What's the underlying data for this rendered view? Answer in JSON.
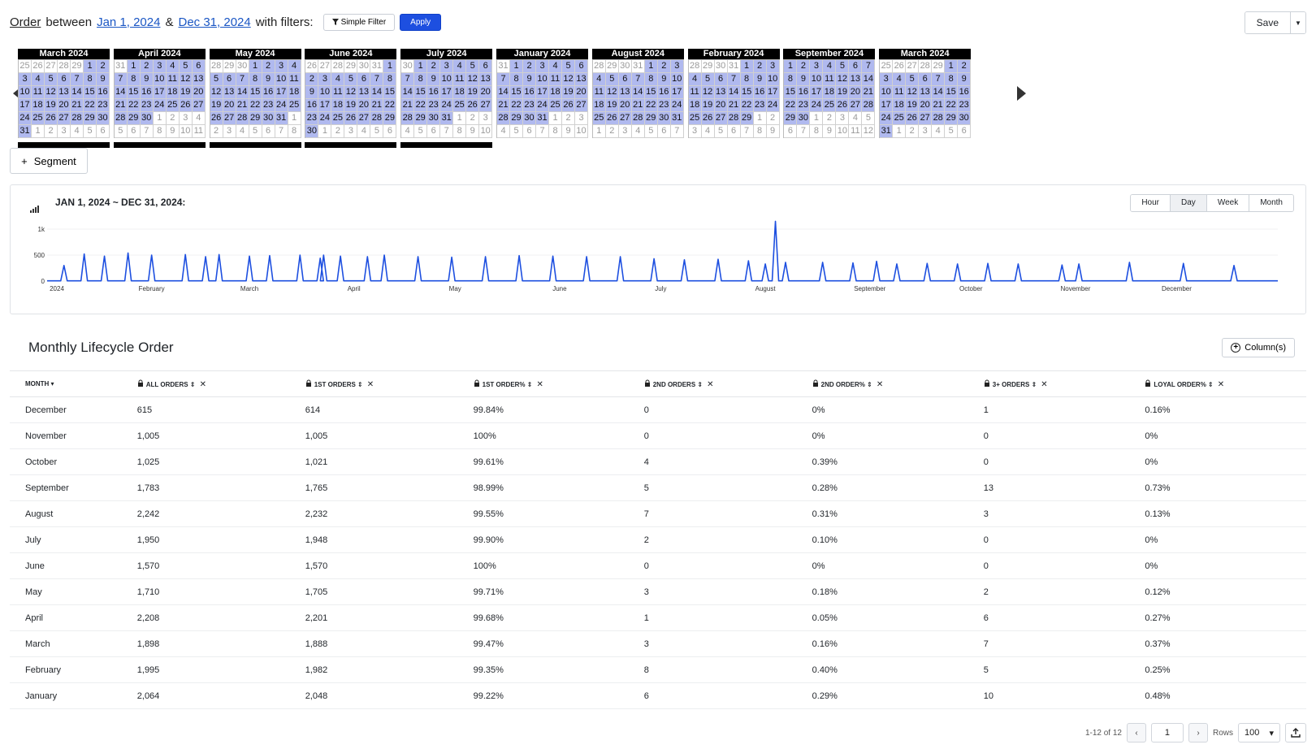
{
  "filter_bar": {
    "entity": "Order",
    "between": "between",
    "start_date": "Jan 1, 2024",
    "amp": "&",
    "end_date": "Dec 31, 2024",
    "with_filters": "with filters:",
    "simple_filter_label": "Simple Filter",
    "apply_label": "Apply",
    "save_label": "Save"
  },
  "calendars": [
    {
      "title": "March 2024",
      "lead": [
        25,
        26,
        27,
        28,
        29
      ],
      "days": 31,
      "trail": [
        1,
        2,
        3,
        4,
        5,
        6
      ],
      "selected": "partial-start"
    },
    {
      "title": "April 2024",
      "lead": [
        31
      ],
      "days": 30,
      "trail": [
        1,
        2,
        3,
        4,
        5,
        6,
        7,
        8,
        9,
        10,
        11
      ],
      "selected": "all"
    },
    {
      "title": "May 2024",
      "lead": [
        28,
        29,
        30
      ],
      "days": 31,
      "trail": [
        1,
        2,
        3,
        4,
        5,
        6,
        7,
        8
      ],
      "selected": "all"
    },
    {
      "title": "June 2024",
      "lead": [
        26,
        27,
        28,
        29,
        30,
        31
      ],
      "days": 30,
      "trail": [
        1,
        2,
        3,
        4,
        5,
        6
      ],
      "selected": "all"
    },
    {
      "title": "July 2024",
      "lead": [
        30
      ],
      "days": 31,
      "trail": [
        1,
        2,
        3,
        4,
        5,
        6,
        7,
        8,
        9,
        10
      ],
      "selected": "all"
    },
    {
      "title": "January 2024",
      "lead": [
        31
      ],
      "days": 31,
      "trail": [
        1,
        2,
        3,
        4,
        5,
        6,
        7,
        8,
        9,
        10
      ],
      "selected": "all"
    },
    {
      "title": "August 2024",
      "lead": [
        28,
        29,
        30,
        31
      ],
      "days": 31,
      "trail": [
        1,
        2,
        3,
        4,
        5,
        6,
        7
      ],
      "selected": "all"
    },
    {
      "title": "February 2024",
      "lead": [
        28,
        29,
        30,
        31
      ],
      "days": 29,
      "trail": [
        1,
        2,
        3,
        4,
        5,
        6,
        7,
        8,
        9
      ],
      "selected": "all"
    },
    {
      "title": "September 2024",
      "lead": [],
      "days": 30,
      "trail": [
        1,
        2,
        3,
        4,
        5,
        6,
        7,
        8,
        9,
        10,
        11,
        12
      ],
      "selected": "all"
    },
    {
      "title": "March 2024",
      "lead": [
        25,
        26,
        27,
        28,
        29
      ],
      "days": 31,
      "trail": [
        1,
        2,
        3,
        4,
        5,
        6
      ],
      "selected": "all"
    }
  ],
  "segment_label": "Segment",
  "chart_panel": {
    "title": "JAN 1, 2024 ~ DEC 31, 2024:",
    "granularity": [
      "Hour",
      "Day",
      "Week",
      "Month"
    ],
    "active_granularity": "Day"
  },
  "chart_data": {
    "type": "line",
    "title": "JAN 1, 2024 ~ DEC 31, 2024:",
    "xlabel": "",
    "ylabel": "",
    "y_ticks": [
      "0",
      "500",
      "1k"
    ],
    "ylim": [
      0,
      1000
    ],
    "x_tick_labels": [
      "2024",
      "February",
      "March",
      "April",
      "May",
      "June",
      "July",
      "August",
      "September",
      "October",
      "November",
      "December"
    ],
    "x_tick_days": [
      0,
      31,
      60,
      91,
      121,
      152,
      182,
      213,
      244,
      274,
      305,
      335
    ],
    "xlim": [
      0,
      365
    ],
    "baseline": 5,
    "series": [
      {
        "spikes": [
          [
            5,
            300
          ],
          [
            11,
            520
          ],
          [
            17,
            480
          ],
          [
            24,
            540
          ],
          [
            31,
            500
          ],
          [
            41,
            510
          ],
          [
            47,
            470
          ],
          [
            51,
            510
          ],
          [
            60,
            480
          ],
          [
            66,
            490
          ],
          [
            75,
            500
          ],
          [
            81,
            440
          ],
          [
            82,
            500
          ],
          [
            87,
            480
          ],
          [
            95,
            470
          ],
          [
            100,
            500
          ],
          [
            110,
            470
          ],
          [
            120,
            460
          ],
          [
            130,
            470
          ],
          [
            140,
            490
          ],
          [
            150,
            480
          ],
          [
            160,
            470
          ],
          [
            170,
            470
          ],
          [
            180,
            430
          ],
          [
            189,
            410
          ],
          [
            199,
            420
          ],
          [
            208,
            390
          ],
          [
            213,
            330
          ],
          [
            216,
            1150
          ],
          [
            219,
            360
          ],
          [
            230,
            360
          ],
          [
            239,
            350
          ],
          [
            246,
            380
          ],
          [
            252,
            330
          ],
          [
            261,
            340
          ],
          [
            270,
            330
          ],
          [
            279,
            340
          ],
          [
            288,
            330
          ],
          [
            301,
            310
          ],
          [
            306,
            330
          ],
          [
            321,
            360
          ],
          [
            337,
            340
          ],
          [
            352,
            300
          ]
        ]
      }
    ]
  },
  "table": {
    "title": "Monthly Lifecycle Order",
    "columns_label": "Column(s)",
    "headers": [
      "MONTH",
      "ALL ORDERS",
      "1ST ORDERS",
      "1ST ORDER%",
      "2ND ORDERS",
      "2ND ORDER%",
      "3+ ORDERS",
      "LOYAL ORDER%"
    ],
    "rows": [
      [
        "December",
        "615",
        "614",
        "99.84%",
        "0",
        "0%",
        "1",
        "0.16%"
      ],
      [
        "November",
        "1,005",
        "1,005",
        "100%",
        "0",
        "0%",
        "0",
        "0%"
      ],
      [
        "October",
        "1,025",
        "1,021",
        "99.61%",
        "4",
        "0.39%",
        "0",
        "0%"
      ],
      [
        "September",
        "1,783",
        "1,765",
        "98.99%",
        "5",
        "0.28%",
        "13",
        "0.73%"
      ],
      [
        "August",
        "2,242",
        "2,232",
        "99.55%",
        "7",
        "0.31%",
        "3",
        "0.13%"
      ],
      [
        "July",
        "1,950",
        "1,948",
        "99.90%",
        "2",
        "0.10%",
        "0",
        "0%"
      ],
      [
        "June",
        "1,570",
        "1,570",
        "100%",
        "0",
        "0%",
        "0",
        "0%"
      ],
      [
        "May",
        "1,710",
        "1,705",
        "99.71%",
        "3",
        "0.18%",
        "2",
        "0.12%"
      ],
      [
        "April",
        "2,208",
        "2,201",
        "99.68%",
        "1",
        "0.05%",
        "6",
        "0.27%"
      ],
      [
        "March",
        "1,898",
        "1,888",
        "99.47%",
        "3",
        "0.16%",
        "7",
        "0.37%"
      ],
      [
        "February",
        "1,995",
        "1,982",
        "99.35%",
        "8",
        "0.40%",
        "5",
        "0.25%"
      ],
      [
        "January",
        "2,064",
        "2,048",
        "99.22%",
        "6",
        "0.29%",
        "10",
        "0.48%"
      ]
    ]
  },
  "pager": {
    "range_text": "1-12 of 12",
    "page": "1",
    "rows_label": "Rows",
    "rows_value": "100"
  }
}
